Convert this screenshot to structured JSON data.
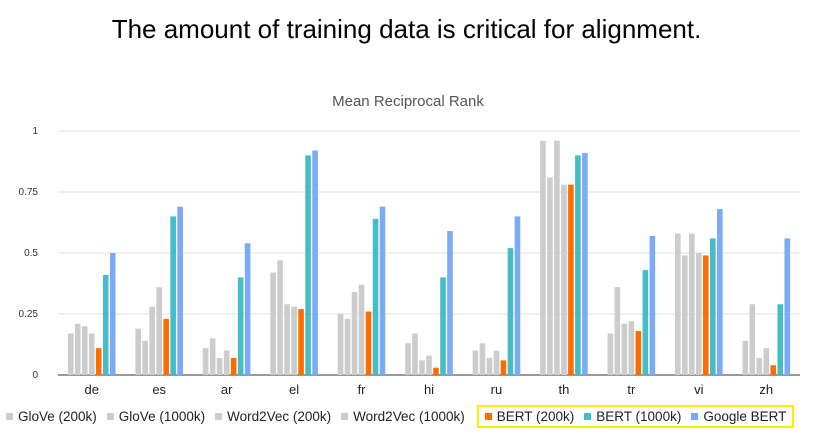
{
  "slide": {
    "title": "The amount of training data is critical for alignment."
  },
  "chart_data": {
    "type": "bar",
    "title": "Mean Reciprocal Rank",
    "xlabel": "",
    "ylabel": "",
    "ylim": [
      0,
      1
    ],
    "yticks": [
      0,
      0.25,
      0.5,
      0.75,
      1
    ],
    "ytick_labels": [
      "0",
      "0.25",
      "0.5",
      "0.75",
      "1"
    ],
    "grid": true,
    "legend_position": "bottom",
    "categories": [
      "de",
      "es",
      "ar",
      "el",
      "fr",
      "hi",
      "ru",
      "th",
      "tr",
      "vi",
      "zh"
    ],
    "series": [
      {
        "name": "GloVe (200k)",
        "color": "#cccccc",
        "values": [
          0.17,
          0.19,
          0.11,
          0.42,
          0.25,
          0.13,
          0.1,
          0.96,
          0.17,
          0.58,
          0.14
        ]
      },
      {
        "name": "GloVe (1000k)",
        "color": "#cccccc",
        "values": [
          0.21,
          0.14,
          0.15,
          0.47,
          0.23,
          0.17,
          0.13,
          0.81,
          0.36,
          0.49,
          0.29
        ]
      },
      {
        "name": "Word2Vec (200k)",
        "color": "#cccccc",
        "values": [
          0.2,
          0.28,
          0.07,
          0.29,
          0.34,
          0.06,
          0.07,
          0.96,
          0.21,
          0.58,
          0.07
        ]
      },
      {
        "name": "Word2Vec (1000k)",
        "color": "#cccccc",
        "values": [
          0.17,
          0.36,
          0.1,
          0.28,
          0.37,
          0.08,
          0.1,
          0.78,
          0.22,
          0.5,
          0.11
        ]
      },
      {
        "name": "BERT (200k)",
        "color": "#ff6d01",
        "values": [
          0.11,
          0.23,
          0.07,
          0.27,
          0.26,
          0.03,
          0.06,
          0.78,
          0.18,
          0.49,
          0.04
        ]
      },
      {
        "name": "BERT (1000k)",
        "color": "#46bdc6",
        "values": [
          0.41,
          0.65,
          0.4,
          0.9,
          0.64,
          0.4,
          0.52,
          0.9,
          0.43,
          0.56,
          0.29
        ]
      },
      {
        "name": "Google BERT",
        "color": "#7baaf7",
        "values": [
          0.5,
          0.69,
          0.54,
          0.92,
          0.69,
          0.59,
          0.65,
          0.91,
          0.57,
          0.68,
          0.56
        ]
      }
    ],
    "highlighted_series": [
      "BERT (200k)",
      "BERT (1000k)",
      "Google BERT"
    ],
    "highlight_color": "#f4f000"
  }
}
